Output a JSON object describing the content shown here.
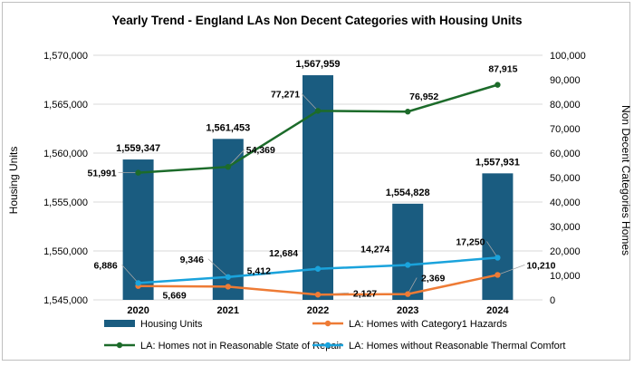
{
  "chart_data": {
    "type": "bar+line",
    "title": "Yearly Trend - England LAs Non Decent Categories with Housing Units",
    "categories": [
      "2020",
      "2021",
      "2022",
      "2023",
      "2024"
    ],
    "y_left_label": "Housing Units",
    "y_right_label": "Non Decent Categories Homes",
    "y_left_range": [
      1545000,
      1570000
    ],
    "y_left_ticks": [
      "1,545,000",
      "1,550,000",
      "1,555,000",
      "1,560,000",
      "1,565,000",
      "1,570,000"
    ],
    "y_right_range": [
      0,
      100000
    ],
    "y_right_ticks": [
      "0",
      "10,000",
      "20,000",
      "30,000",
      "40,000",
      "50,000",
      "60,000",
      "70,000",
      "80,000",
      "90,000",
      "100,000"
    ],
    "bars": {
      "name": "Housing Units",
      "color": "#1a5c80",
      "values": [
        1559347,
        1561453,
        1567959,
        1554828,
        1557931
      ],
      "labels": [
        "1,559,347",
        "1,561,453",
        "1,567,959",
        "1,554,828",
        "1,557,931"
      ]
    },
    "lines": [
      {
        "name": "LA: Homes with Category1 Hazards",
        "color": "#ee7b35",
        "values": [
          5669,
          5412,
          2127,
          2369,
          10210
        ],
        "labels": [
          "5,669",
          "5,412",
          "2,127",
          "2,369",
          "10,210"
        ]
      },
      {
        "name": "LA: Homes not in Reasonable State of Repair",
        "color": "#1c6b2a",
        "values": [
          51991,
          54369,
          77271,
          76952,
          87915
        ],
        "labels": [
          "51,991",
          "54,369",
          "77,271",
          "76,952",
          "87,915"
        ]
      },
      {
        "name": "LA: Homes without Reasonable Thermal Comfort",
        "color": "#1aa3dc",
        "values": [
          6886,
          9346,
          12684,
          14274,
          17250
        ],
        "labels": [
          "6,886",
          "9,346",
          "12,684",
          "14,274",
          "17,250"
        ]
      }
    ],
    "legend_position": "bottom"
  }
}
